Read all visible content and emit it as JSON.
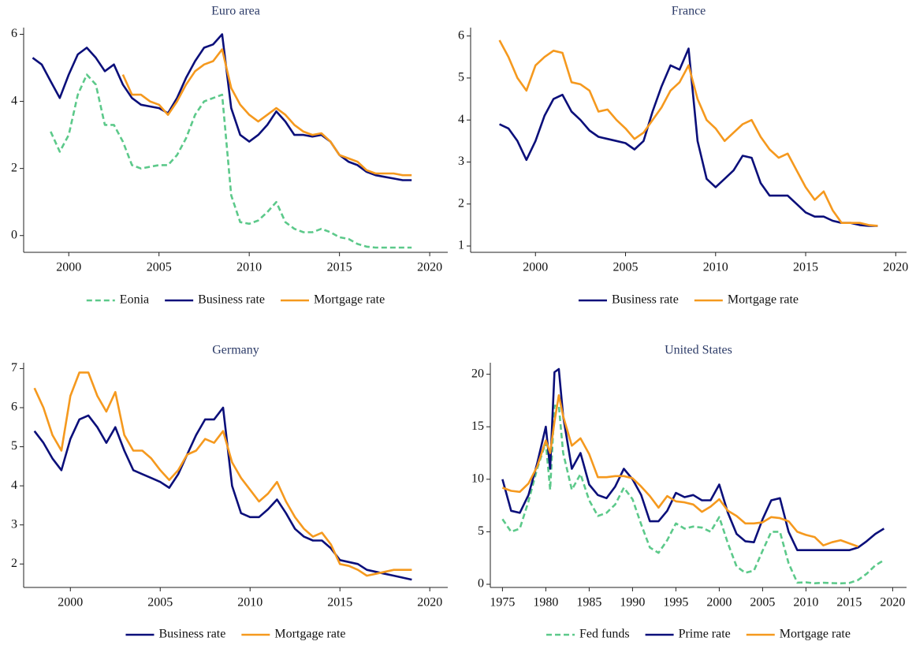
{
  "chart_data": [
    {
      "type": "line",
      "title": "Euro area",
      "x": [
        1998,
        1998.5,
        1999,
        1999.5,
        2000,
        2000.5,
        2001,
        2001.5,
        2002,
        2002.5,
        2003,
        2003.5,
        2004,
        2004.5,
        2005,
        2005.5,
        2006,
        2006.5,
        2007,
        2007.5,
        2008,
        2008.5,
        2009,
        2009.5,
        2010,
        2010.5,
        2011,
        2011.5,
        2012,
        2012.5,
        2013,
        2013.5,
        2014,
        2014.5,
        2015,
        2015.5,
        2016,
        2016.5,
        2017,
        2017.5,
        2018,
        2018.5,
        2019
      ],
      "series": [
        {
          "name": "Eonia",
          "color": "#5cc98a",
          "dash": true,
          "values": [
            null,
            null,
            3.1,
            2.5,
            3.0,
            4.2,
            4.8,
            4.5,
            3.3,
            3.3,
            2.8,
            2.1,
            2.0,
            2.05,
            2.1,
            2.1,
            2.4,
            2.9,
            3.6,
            4.0,
            4.1,
            4.2,
            1.2,
            0.4,
            0.35,
            0.45,
            0.7,
            1.0,
            0.4,
            0.2,
            0.1,
            0.1,
            0.2,
            0.1,
            -0.05,
            -0.1,
            -0.25,
            -0.33,
            -0.36,
            -0.36,
            -0.36,
            -0.36,
            -0.36
          ]
        },
        {
          "name": "Business rate",
          "color": "#0b0f7a",
          "values": [
            5.3,
            5.1,
            4.6,
            4.1,
            4.8,
            5.4,
            5.6,
            5.3,
            4.9,
            5.1,
            4.5,
            4.1,
            3.9,
            3.85,
            3.8,
            3.65,
            4.1,
            4.7,
            5.2,
            5.6,
            5.7,
            6.0,
            3.8,
            3.0,
            2.8,
            3.0,
            3.3,
            3.7,
            3.4,
            3.0,
            3.0,
            2.95,
            3.0,
            2.8,
            2.4,
            2.2,
            2.1,
            1.9,
            1.8,
            1.75,
            1.7,
            1.65,
            1.65
          ]
        },
        {
          "name": "Mortgage rate",
          "color": "#f5991e",
          "values": [
            null,
            null,
            null,
            null,
            null,
            null,
            null,
            null,
            null,
            null,
            4.8,
            4.2,
            4.2,
            4.0,
            3.9,
            3.6,
            4.0,
            4.5,
            4.9,
            5.1,
            5.2,
            5.55,
            4.4,
            3.9,
            3.6,
            3.4,
            3.6,
            3.8,
            3.6,
            3.3,
            3.1,
            3.0,
            3.05,
            2.8,
            2.4,
            2.3,
            2.2,
            1.95,
            1.85,
            1.85,
            1.85,
            1.8,
            1.8
          ]
        }
      ],
      "xlim": [
        1997.5,
        2021
      ],
      "xticks": [
        2000,
        2005,
        2010,
        2015,
        2020
      ],
      "ylim": [
        -0.5,
        6.2
      ],
      "yticks": [
        0,
        2,
        4,
        6
      ]
    },
    {
      "type": "line",
      "title": "France",
      "x": [
        1998,
        1998.5,
        1999,
        1999.5,
        2000,
        2000.5,
        2001,
        2001.5,
        2002,
        2002.5,
        2003,
        2003.5,
        2004,
        2004.5,
        2005,
        2005.5,
        2006,
        2006.5,
        2007,
        2007.5,
        2008,
        2008.5,
        2009,
        2009.5,
        2010,
        2010.5,
        2011,
        2011.5,
        2012,
        2012.5,
        2013,
        2013.5,
        2014,
        2014.5,
        2015,
        2015.5,
        2016,
        2016.5,
        2017,
        2017.5,
        2018,
        2018.5,
        2019
      ],
      "series": [
        {
          "name": "Business rate",
          "color": "#0b0f7a",
          "values": [
            3.9,
            3.8,
            3.5,
            3.05,
            3.5,
            4.1,
            4.5,
            4.6,
            4.2,
            4.0,
            3.75,
            3.6,
            3.55,
            3.5,
            3.45,
            3.3,
            3.5,
            4.2,
            4.8,
            5.3,
            5.2,
            5.7,
            3.5,
            2.6,
            2.4,
            2.6,
            2.8,
            3.15,
            3.1,
            2.5,
            2.2,
            2.2,
            2.2,
            2.0,
            1.8,
            1.7,
            1.7,
            1.6,
            1.55,
            1.55,
            1.5,
            1.48,
            1.48
          ]
        },
        {
          "name": "Mortgage rate",
          "color": "#f5991e",
          "values": [
            5.9,
            5.5,
            5.0,
            4.7,
            5.3,
            5.5,
            5.65,
            5.6,
            4.9,
            4.85,
            4.7,
            4.2,
            4.25,
            4.0,
            3.8,
            3.55,
            3.7,
            4.0,
            4.3,
            4.7,
            4.9,
            5.3,
            4.5,
            4.0,
            3.8,
            3.5,
            3.7,
            3.9,
            4.0,
            3.6,
            3.3,
            3.1,
            3.2,
            2.8,
            2.4,
            2.1,
            2.3,
            1.85,
            1.55,
            1.55,
            1.55,
            1.5,
            1.48
          ]
        }
      ],
      "xlim": [
        1996.4,
        2020.6
      ],
      "xticks": [
        2000,
        2005,
        2010,
        2015,
        2020
      ],
      "ylim": [
        0.85,
        6.2
      ],
      "yticks": [
        1,
        2,
        3,
        4,
        5,
        6
      ]
    },
    {
      "type": "line",
      "title": "Germany",
      "x": [
        1998,
        1998.5,
        1999,
        1999.5,
        2000,
        2000.5,
        2001,
        2001.5,
        2002,
        2002.5,
        2003,
        2003.5,
        2004,
        2004.5,
        2005,
        2005.5,
        2006,
        2006.5,
        2007,
        2007.5,
        2008,
        2008.5,
        2009,
        2009.5,
        2010,
        2010.5,
        2011,
        2011.5,
        2012,
        2012.5,
        2013,
        2013.5,
        2014,
        2014.5,
        2015,
        2015.5,
        2016,
        2016.5,
        2017,
        2017.5,
        2018,
        2018.5,
        2019
      ],
      "series": [
        {
          "name": "Business rate",
          "color": "#0b0f7a",
          "values": [
            5.4,
            5.1,
            4.7,
            4.4,
            5.2,
            5.7,
            5.8,
            5.5,
            5.1,
            5.5,
            4.9,
            4.4,
            4.3,
            4.2,
            4.1,
            3.95,
            4.3,
            4.8,
            5.3,
            5.7,
            5.7,
            6.0,
            4.0,
            3.3,
            3.2,
            3.2,
            3.4,
            3.65,
            3.3,
            2.9,
            2.7,
            2.6,
            2.6,
            2.4,
            2.1,
            2.05,
            2.0,
            1.85,
            1.8,
            1.75,
            1.7,
            1.65,
            1.6
          ]
        },
        {
          "name": "Mortgage rate",
          "color": "#f5991e",
          "values": [
            6.5,
            6.0,
            5.3,
            4.9,
            6.3,
            6.9,
            6.9,
            6.3,
            5.9,
            6.4,
            5.3,
            4.9,
            4.9,
            4.7,
            4.4,
            4.15,
            4.4,
            4.8,
            4.9,
            5.2,
            5.1,
            5.4,
            4.6,
            4.2,
            3.9,
            3.6,
            3.8,
            4.1,
            3.6,
            3.2,
            2.9,
            2.7,
            2.8,
            2.5,
            2.0,
            1.95,
            1.85,
            1.7,
            1.75,
            1.8,
            1.85,
            1.85,
            1.85
          ]
        }
      ],
      "xlim": [
        1997.4,
        2021
      ],
      "xticks": [
        2000,
        2005,
        2010,
        2015,
        2020
      ],
      "ylim": [
        1.4,
        7.15
      ],
      "yticks": [
        2,
        3,
        4,
        5,
        6,
        7
      ]
    },
    {
      "type": "line",
      "title": "United States",
      "x": [
        1975,
        1976,
        1977,
        1978,
        1979,
        1980,
        1980.5,
        1981,
        1981.5,
        1982,
        1983,
        1984,
        1985,
        1986,
        1987,
        1988,
        1989,
        1990,
        1991,
        1992,
        1993,
        1994,
        1995,
        1996,
        1997,
        1998,
        1999,
        2000,
        2001,
        2002,
        2003,
        2004,
        2005,
        2006,
        2007,
        2008,
        2009,
        2010,
        2011,
        2012,
        2013,
        2014,
        2015,
        2016,
        2017,
        2018,
        2019
      ],
      "series": [
        {
          "name": "Fed funds",
          "color": "#5cc98a",
          "dash": true,
          "values": [
            6.2,
            5.0,
            5.3,
            7.9,
            11,
            13.5,
            9,
            17,
            17,
            12.5,
            9,
            10.5,
            8,
            6.5,
            6.8,
            7.6,
            9.2,
            8.1,
            5.7,
            3.5,
            3.0,
            4.2,
            5.8,
            5.3,
            5.5,
            5.4,
            5.0,
            6.4,
            3.9,
            1.7,
            1.1,
            1.3,
            3.2,
            5.0,
            5.0,
            2.0,
            0.16,
            0.18,
            0.1,
            0.14,
            0.11,
            0.09,
            0.13,
            0.4,
            1.0,
            1.8,
            2.3
          ]
        },
        {
          "name": "Prime rate",
          "color": "#0b0f7a",
          "values": [
            10,
            7,
            6.8,
            8.5,
            11.5,
            15,
            11,
            20.2,
            20.5,
            16,
            11,
            12.5,
            9.5,
            8.5,
            8.2,
            9.3,
            11,
            10,
            8.5,
            6,
            6,
            7,
            8.7,
            8.3,
            8.5,
            8,
            8,
            9.5,
            6.8,
            4.8,
            4.1,
            4.0,
            6.2,
            8.0,
            8.2,
            5.0,
            3.25,
            3.25,
            3.25,
            3.25,
            3.25,
            3.25,
            3.25,
            3.5,
            4.1,
            4.8,
            5.3
          ]
        },
        {
          "name": "Mortgage rate",
          "color": "#f5991e",
          "values": [
            9.2,
            8.9,
            8.8,
            9.6,
            11.2,
            13.7,
            12.5,
            15.5,
            18,
            16,
            13.2,
            13.9,
            12.4,
            10.2,
            10.2,
            10.3,
            10.3,
            10.1,
            9.3,
            8.4,
            7.3,
            8.4,
            7.9,
            7.8,
            7.6,
            6.9,
            7.4,
            8.1,
            7.0,
            6.5,
            5.8,
            5.8,
            5.9,
            6.4,
            6.3,
            6.0,
            5.0,
            4.7,
            4.5,
            3.7,
            4.0,
            4.2,
            3.9,
            3.6,
            null,
            null,
            null
          ]
        }
      ],
      "xlim": [
        1973.6,
        2021.6
      ],
      "xticks": [
        1975,
        1980,
        1985,
        1990,
        1995,
        2000,
        2005,
        2010,
        2015,
        2020
      ],
      "ylim": [
        -0.3,
        21.1
      ],
      "yticks": [
        0,
        5,
        10,
        15,
        20
      ]
    }
  ]
}
